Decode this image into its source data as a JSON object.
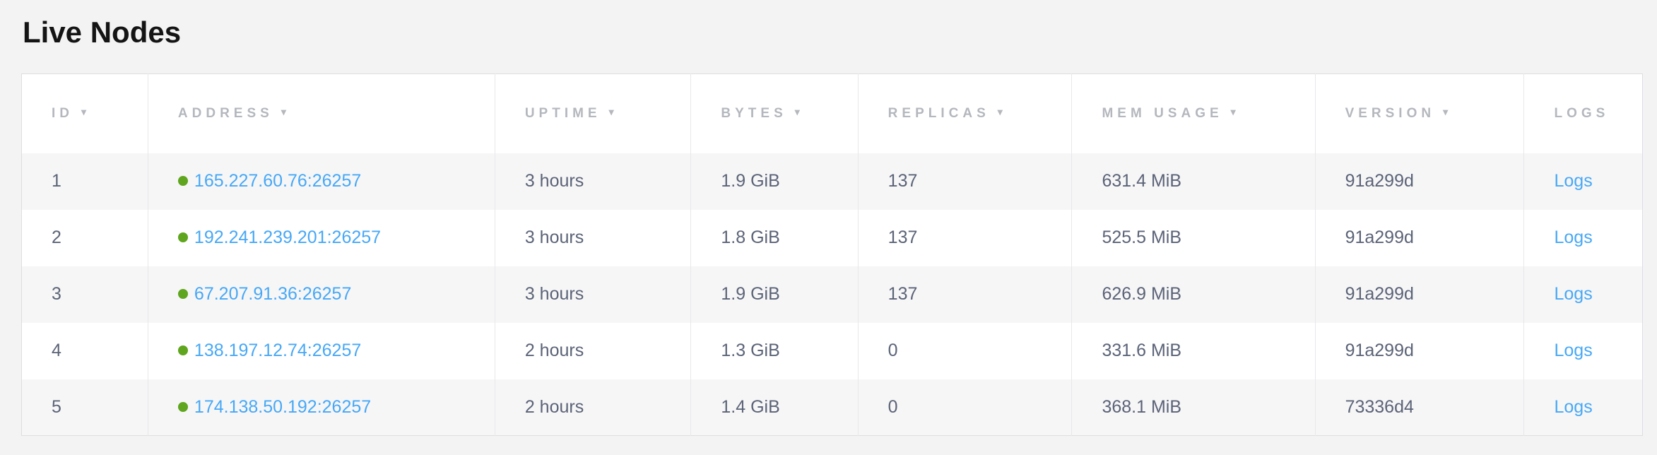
{
  "page": {
    "title": "Live Nodes"
  },
  "colors": {
    "page_background": "#f3f3f4",
    "stripe_row_background": "#f6f6f7",
    "link_blue": "#47a8f6",
    "node_live_green": "#5fa51e",
    "header_text_gray": "#b4b7bd",
    "cell_text_slate": "#5b6377"
  },
  "table": {
    "sort_indicator": "▾",
    "columns": [
      {
        "key": "id",
        "label": "ID",
        "sortable": true
      },
      {
        "key": "address",
        "label": "ADDRESS",
        "sortable": true
      },
      {
        "key": "uptime",
        "label": "UPTIME",
        "sortable": true
      },
      {
        "key": "bytes",
        "label": "BYTES",
        "sortable": true
      },
      {
        "key": "replicas",
        "label": "REPLICAS",
        "sortable": true
      },
      {
        "key": "mem_usage",
        "label": "MEM USAGE",
        "sortable": true
      },
      {
        "key": "version",
        "label": "VERSION",
        "sortable": true
      },
      {
        "key": "logs",
        "label": "LOGS",
        "sortable": false
      }
    ],
    "rows": [
      {
        "id": "1",
        "status_icon": "live-green-dot",
        "address": "165.227.60.76:26257",
        "uptime": "3 hours",
        "bytes": "1.9 GiB",
        "replicas": "137",
        "mem_usage": "631.4 MiB",
        "version": "91a299d",
        "logs_label": "Logs"
      },
      {
        "id": "2",
        "status_icon": "live-green-dot",
        "address": "192.241.239.201:26257",
        "uptime": "3 hours",
        "bytes": "1.8 GiB",
        "replicas": "137",
        "mem_usage": "525.5 MiB",
        "version": "91a299d",
        "logs_label": "Logs"
      },
      {
        "id": "3",
        "status_icon": "live-green-dot",
        "address": "67.207.91.36:26257",
        "uptime": "3 hours",
        "bytes": "1.9 GiB",
        "replicas": "137",
        "mem_usage": "626.9 MiB",
        "version": "91a299d",
        "logs_label": "Logs"
      },
      {
        "id": "4",
        "status_icon": "live-green-dot",
        "address": "138.197.12.74:26257",
        "uptime": "2 hours",
        "bytes": "1.3 GiB",
        "replicas": "0",
        "mem_usage": "331.6 MiB",
        "version": "91a299d",
        "logs_label": "Logs"
      },
      {
        "id": "5",
        "status_icon": "live-green-dot",
        "address": "174.138.50.192:26257",
        "uptime": "2 hours",
        "bytes": "1.4 GiB",
        "replicas": "0",
        "mem_usage": "368.1 MiB",
        "version": "73336d4",
        "logs_label": "Logs"
      }
    ]
  }
}
